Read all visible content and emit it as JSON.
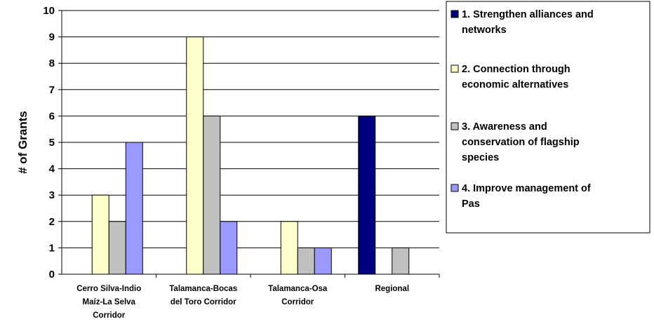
{
  "chart_data": {
    "type": "bar",
    "categories": [
      [
        "Cerro Silva-Indio",
        "Maíz-La Selva",
        "Corridor"
      ],
      [
        "Talamanca-Bocas",
        "del Toro Corridor"
      ],
      [
        "Talamanca-Osa",
        "Corridor"
      ],
      [
        "Regional"
      ]
    ],
    "series": [
      {
        "name": [
          "1. Strengthen alliances and",
          "networks"
        ],
        "color": "#000080",
        "values": [
          0,
          0,
          0,
          6
        ]
      },
      {
        "name": [
          "2. Connection through",
          "economic alternatives"
        ],
        "color": "#ffffcc",
        "values": [
          3,
          9,
          2,
          0
        ]
      },
      {
        "name": [
          "3. Awareness and",
          "conservation of flagship",
          "species"
        ],
        "color": "#c0c0c0",
        "values": [
          2,
          6,
          1,
          1
        ]
      },
      {
        "name": [
          "4. Improve management of",
          "Pas"
        ],
        "color": "#9999ff",
        "values": [
          5,
          2,
          1,
          0
        ]
      }
    ],
    "xlabel": "",
    "ylabel": "# of Grants",
    "ylim": [
      0,
      10
    ],
    "yticks": [
      "0",
      "1",
      "2",
      "3",
      "4",
      "5",
      "6",
      "7",
      "8",
      "9",
      "10"
    ],
    "grid": true,
    "legend_position": "right"
  }
}
